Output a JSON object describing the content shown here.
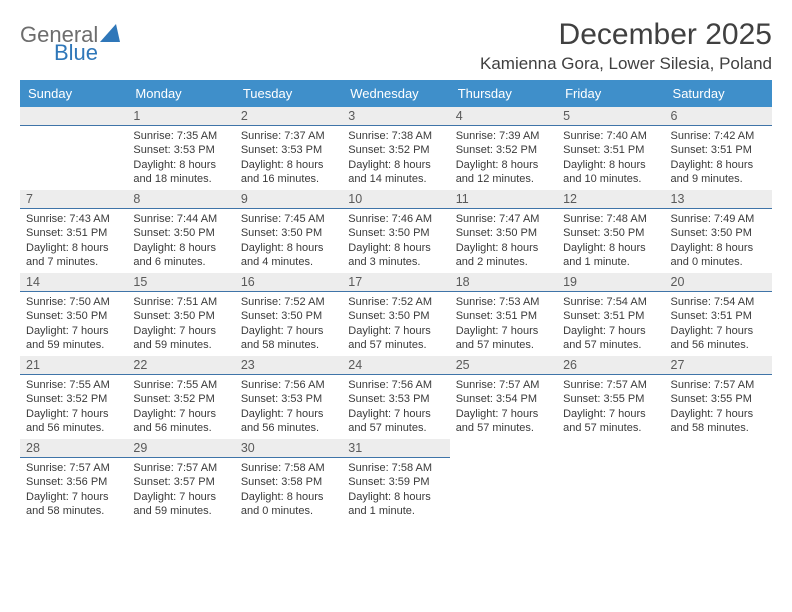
{
  "logo": {
    "line1": "General",
    "line2": "Blue"
  },
  "title": "December 2025",
  "location": "Kamienna Gora, Lower Silesia, Poland",
  "header_bg": "#3f8fca",
  "header_text": "#ffffff",
  "daynum_bg": "#ededed",
  "daynum_border": "#3f74a8",
  "page_bg": "#ffffff",
  "text_color": "#3a3a3a",
  "daysOfWeek": [
    "Sunday",
    "Monday",
    "Tuesday",
    "Wednesday",
    "Thursday",
    "Friday",
    "Saturday"
  ],
  "weeks": [
    [
      null,
      {
        "n": "1",
        "sr": "Sunrise: 7:35 AM",
        "ss": "Sunset: 3:53 PM",
        "dl": "Daylight: 8 hours and 18 minutes."
      },
      {
        "n": "2",
        "sr": "Sunrise: 7:37 AM",
        "ss": "Sunset: 3:53 PM",
        "dl": "Daylight: 8 hours and 16 minutes."
      },
      {
        "n": "3",
        "sr": "Sunrise: 7:38 AM",
        "ss": "Sunset: 3:52 PM",
        "dl": "Daylight: 8 hours and 14 minutes."
      },
      {
        "n": "4",
        "sr": "Sunrise: 7:39 AM",
        "ss": "Sunset: 3:52 PM",
        "dl": "Daylight: 8 hours and 12 minutes."
      },
      {
        "n": "5",
        "sr": "Sunrise: 7:40 AM",
        "ss": "Sunset: 3:51 PM",
        "dl": "Daylight: 8 hours and 10 minutes."
      },
      {
        "n": "6",
        "sr": "Sunrise: 7:42 AM",
        "ss": "Sunset: 3:51 PM",
        "dl": "Daylight: 8 hours and 9 minutes."
      }
    ],
    [
      {
        "n": "7",
        "sr": "Sunrise: 7:43 AM",
        "ss": "Sunset: 3:51 PM",
        "dl": "Daylight: 8 hours and 7 minutes."
      },
      {
        "n": "8",
        "sr": "Sunrise: 7:44 AM",
        "ss": "Sunset: 3:50 PM",
        "dl": "Daylight: 8 hours and 6 minutes."
      },
      {
        "n": "9",
        "sr": "Sunrise: 7:45 AM",
        "ss": "Sunset: 3:50 PM",
        "dl": "Daylight: 8 hours and 4 minutes."
      },
      {
        "n": "10",
        "sr": "Sunrise: 7:46 AM",
        "ss": "Sunset: 3:50 PM",
        "dl": "Daylight: 8 hours and 3 minutes."
      },
      {
        "n": "11",
        "sr": "Sunrise: 7:47 AM",
        "ss": "Sunset: 3:50 PM",
        "dl": "Daylight: 8 hours and 2 minutes."
      },
      {
        "n": "12",
        "sr": "Sunrise: 7:48 AM",
        "ss": "Sunset: 3:50 PM",
        "dl": "Daylight: 8 hours and 1 minute."
      },
      {
        "n": "13",
        "sr": "Sunrise: 7:49 AM",
        "ss": "Sunset: 3:50 PM",
        "dl": "Daylight: 8 hours and 0 minutes."
      }
    ],
    [
      {
        "n": "14",
        "sr": "Sunrise: 7:50 AM",
        "ss": "Sunset: 3:50 PM",
        "dl": "Daylight: 7 hours and 59 minutes."
      },
      {
        "n": "15",
        "sr": "Sunrise: 7:51 AM",
        "ss": "Sunset: 3:50 PM",
        "dl": "Daylight: 7 hours and 59 minutes."
      },
      {
        "n": "16",
        "sr": "Sunrise: 7:52 AM",
        "ss": "Sunset: 3:50 PM",
        "dl": "Daylight: 7 hours and 58 minutes."
      },
      {
        "n": "17",
        "sr": "Sunrise: 7:52 AM",
        "ss": "Sunset: 3:50 PM",
        "dl": "Daylight: 7 hours and 57 minutes."
      },
      {
        "n": "18",
        "sr": "Sunrise: 7:53 AM",
        "ss": "Sunset: 3:51 PM",
        "dl": "Daylight: 7 hours and 57 minutes."
      },
      {
        "n": "19",
        "sr": "Sunrise: 7:54 AM",
        "ss": "Sunset: 3:51 PM",
        "dl": "Daylight: 7 hours and 57 minutes."
      },
      {
        "n": "20",
        "sr": "Sunrise: 7:54 AM",
        "ss": "Sunset: 3:51 PM",
        "dl": "Daylight: 7 hours and 56 minutes."
      }
    ],
    [
      {
        "n": "21",
        "sr": "Sunrise: 7:55 AM",
        "ss": "Sunset: 3:52 PM",
        "dl": "Daylight: 7 hours and 56 minutes."
      },
      {
        "n": "22",
        "sr": "Sunrise: 7:55 AM",
        "ss": "Sunset: 3:52 PM",
        "dl": "Daylight: 7 hours and 56 minutes."
      },
      {
        "n": "23",
        "sr": "Sunrise: 7:56 AM",
        "ss": "Sunset: 3:53 PM",
        "dl": "Daylight: 7 hours and 56 minutes."
      },
      {
        "n": "24",
        "sr": "Sunrise: 7:56 AM",
        "ss": "Sunset: 3:53 PM",
        "dl": "Daylight: 7 hours and 57 minutes."
      },
      {
        "n": "25",
        "sr": "Sunrise: 7:57 AM",
        "ss": "Sunset: 3:54 PM",
        "dl": "Daylight: 7 hours and 57 minutes."
      },
      {
        "n": "26",
        "sr": "Sunrise: 7:57 AM",
        "ss": "Sunset: 3:55 PM",
        "dl": "Daylight: 7 hours and 57 minutes."
      },
      {
        "n": "27",
        "sr": "Sunrise: 7:57 AM",
        "ss": "Sunset: 3:55 PM",
        "dl": "Daylight: 7 hours and 58 minutes."
      }
    ],
    [
      {
        "n": "28",
        "sr": "Sunrise: 7:57 AM",
        "ss": "Sunset: 3:56 PM",
        "dl": "Daylight: 7 hours and 58 minutes."
      },
      {
        "n": "29",
        "sr": "Sunrise: 7:57 AM",
        "ss": "Sunset: 3:57 PM",
        "dl": "Daylight: 7 hours and 59 minutes."
      },
      {
        "n": "30",
        "sr": "Sunrise: 7:58 AM",
        "ss": "Sunset: 3:58 PM",
        "dl": "Daylight: 8 hours and 0 minutes."
      },
      {
        "n": "31",
        "sr": "Sunrise: 7:58 AM",
        "ss": "Sunset: 3:59 PM",
        "dl": "Daylight: 8 hours and 1 minute."
      },
      null,
      null,
      null
    ]
  ]
}
